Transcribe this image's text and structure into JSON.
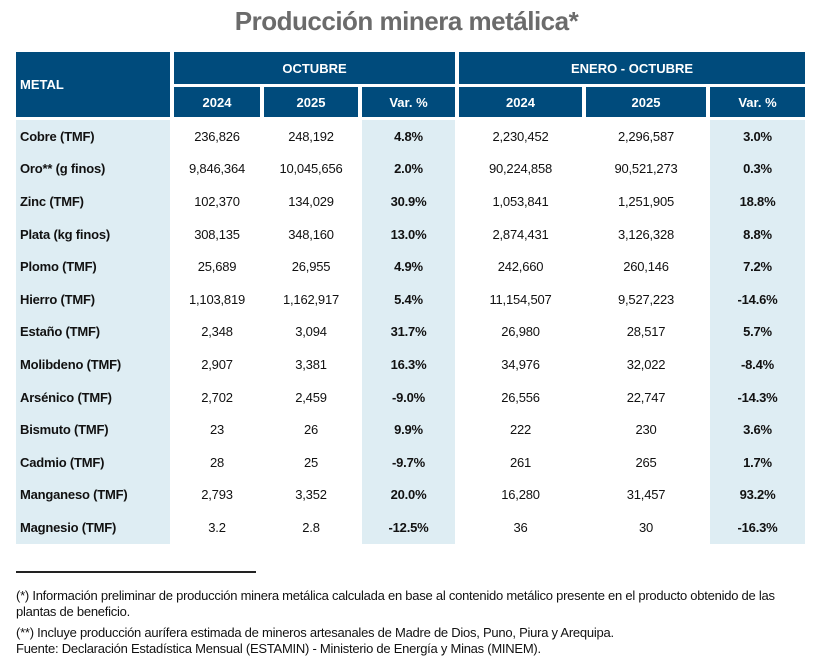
{
  "title": "Producción minera metálica*",
  "header": {
    "metal": "METAL",
    "group_octubre": "OCTUBRE",
    "group_enero_octubre": "ENERO - OCTUBRE",
    "year_a": "2024",
    "year_b": "2025",
    "var": "Var. %"
  },
  "colors": {
    "header_bg": "#004b7c",
    "highlight_bg": "#deedf3",
    "title": "#6b6b6b"
  },
  "rows": [
    {
      "metal": "Cobre (TMF)",
      "oct_2024": "236,826",
      "oct_2025": "248,192",
      "oct_var": "4.8%",
      "ytd_2024": "2,230,452",
      "ytd_2025": "2,296,587",
      "ytd_var": "3.0%"
    },
    {
      "metal": "Oro** (g finos)",
      "oct_2024": "9,846,364",
      "oct_2025": "10,045,656",
      "oct_var": "2.0%",
      "ytd_2024": "90,224,858",
      "ytd_2025": "90,521,273",
      "ytd_var": "0.3%"
    },
    {
      "metal": "Zinc (TMF)",
      "oct_2024": "102,370",
      "oct_2025": "134,029",
      "oct_var": "30.9%",
      "ytd_2024": "1,053,841",
      "ytd_2025": "1,251,905",
      "ytd_var": "18.8%"
    },
    {
      "metal": "Plata (kg finos)",
      "oct_2024": "308,135",
      "oct_2025": "348,160",
      "oct_var": "13.0%",
      "ytd_2024": "2,874,431",
      "ytd_2025": "3,126,328",
      "ytd_var": "8.8%"
    },
    {
      "metal": "Plomo (TMF)",
      "oct_2024": "25,689",
      "oct_2025": "26,955",
      "oct_var": "4.9%",
      "ytd_2024": "242,660",
      "ytd_2025": "260,146",
      "ytd_var": "7.2%"
    },
    {
      "metal": "Hierro (TMF)",
      "oct_2024": "1,103,819",
      "oct_2025": "1,162,917",
      "oct_var": "5.4%",
      "ytd_2024": "11,154,507",
      "ytd_2025": "9,527,223",
      "ytd_var": "-14.6%"
    },
    {
      "metal": "Estaño (TMF)",
      "oct_2024": "2,348",
      "oct_2025": "3,094",
      "oct_var": "31.7%",
      "ytd_2024": "26,980",
      "ytd_2025": "28,517",
      "ytd_var": "5.7%"
    },
    {
      "metal": "Molibdeno (TMF)",
      "oct_2024": "2,907",
      "oct_2025": "3,381",
      "oct_var": "16.3%",
      "ytd_2024": "34,976",
      "ytd_2025": "32,022",
      "ytd_var": "-8.4%"
    },
    {
      "metal": "Arsénico (TMF)",
      "oct_2024": "2,702",
      "oct_2025": "2,459",
      "oct_var": "-9.0%",
      "ytd_2024": "26,556",
      "ytd_2025": "22,747",
      "ytd_var": "-14.3%"
    },
    {
      "metal": "Bismuto (TMF)",
      "oct_2024": "23",
      "oct_2025": "26",
      "oct_var": "9.9%",
      "ytd_2024": "222",
      "ytd_2025": "230",
      "ytd_var": "3.6%"
    },
    {
      "metal": "Cadmio (TMF)",
      "oct_2024": "28",
      "oct_2025": "25",
      "oct_var": "-9.7%",
      "ytd_2024": "261",
      "ytd_2025": "265",
      "ytd_var": "1.7%"
    },
    {
      "metal": "Manganeso (TMF)",
      "oct_2024": "2,793",
      "oct_2025": "3,352",
      "oct_var": "20.0%",
      "ytd_2024": "16,280",
      "ytd_2025": "31,457",
      "ytd_var": "93.2%"
    },
    {
      "metal": "Magnesio (TMF)",
      "oct_2024": "3.2",
      "oct_2025": "2.8",
      "oct_var": "-12.5%",
      "ytd_2024": "36",
      "ytd_2025": "30",
      "ytd_var": "-16.3%"
    }
  ],
  "notes": {
    "note1": "(*) Información preliminar de producción minera metálica calculada en base al contenido metálico presente en el producto obtenido de las plantas de beneficio.",
    "note2": "(**) Incluye producción aurífera estimada de mineros artesanales de Madre de Dios, Puno, Piura y Arequipa.",
    "source": "Fuente: Declaración Estadística Mensual (ESTAMIN) - Ministerio de Energía y Minas (MINEM)."
  }
}
